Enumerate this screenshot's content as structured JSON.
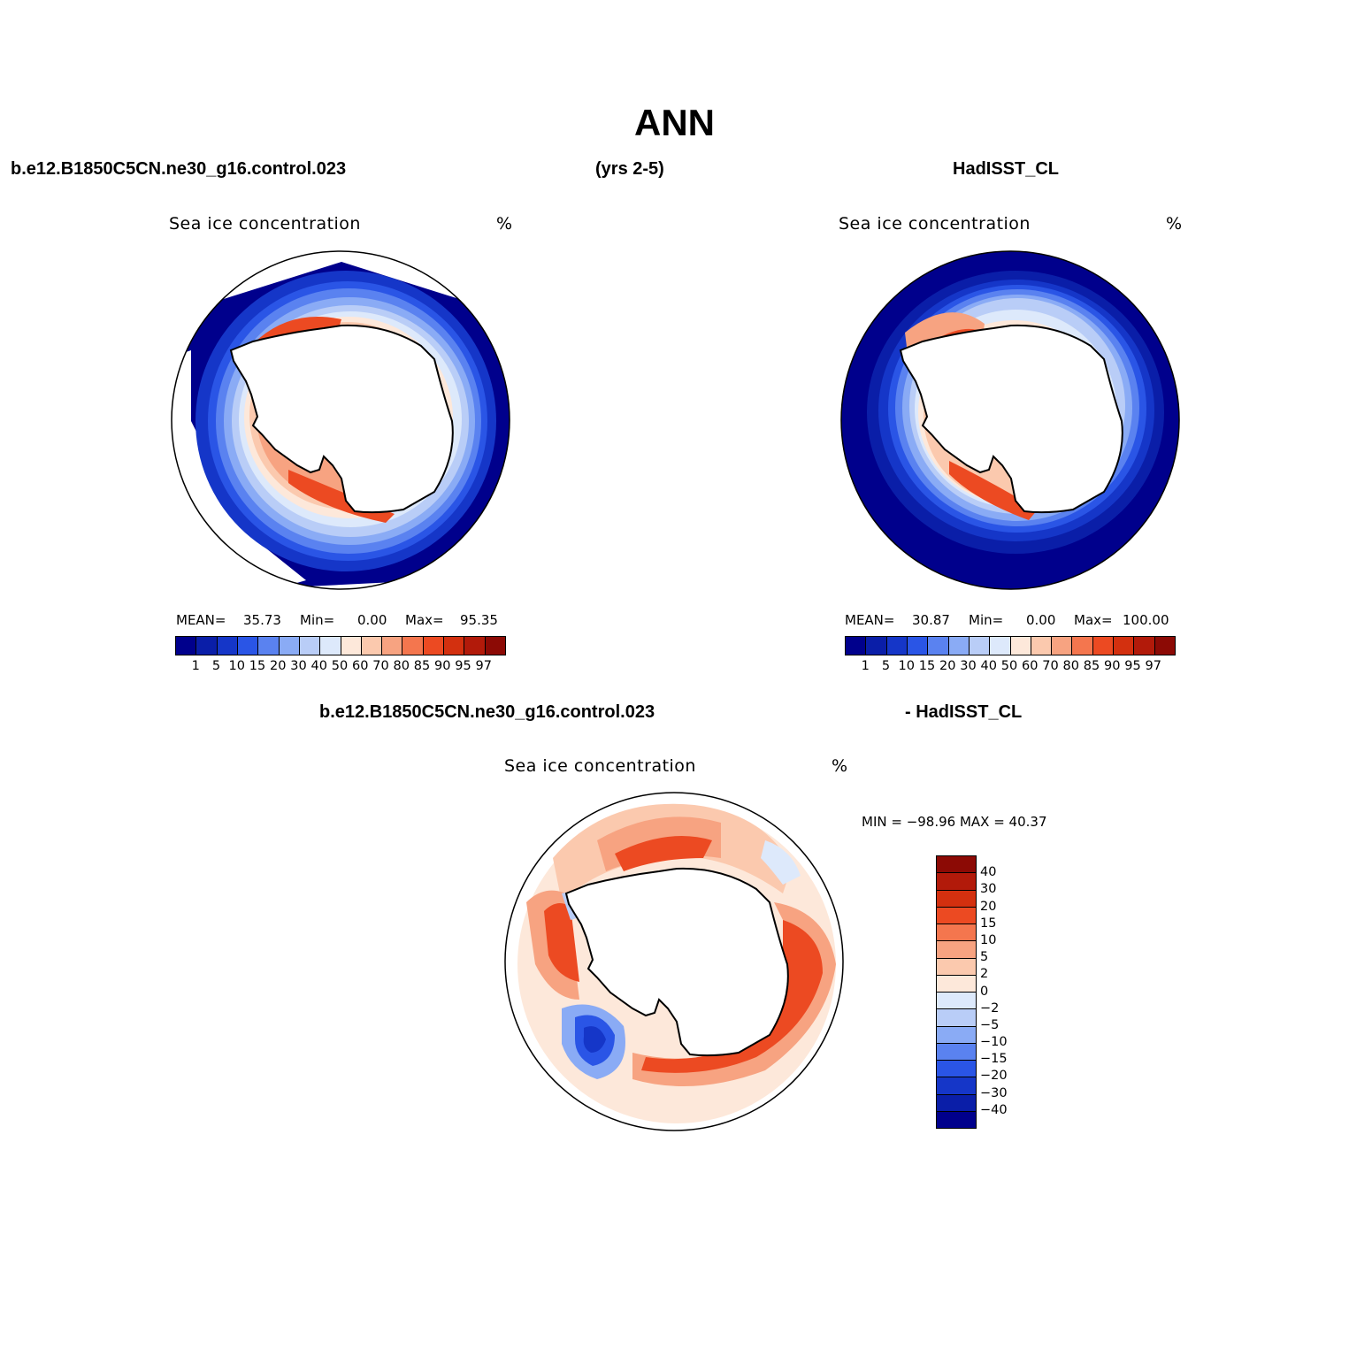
{
  "figure": {
    "title": "ANN",
    "header_left": "b.e12.B1850C5CN.ne30_g16.control.023",
    "header_center": "(yrs 2-5)",
    "header_right": "HadISST_CL",
    "diff_header_left": "b.e12.B1850C5CN.ne30_g16.control.023",
    "diff_header_right": "- HadISST_CL"
  },
  "panels": {
    "model": {
      "title": "Sea ice concentration",
      "units": "%",
      "mean_label": "MEAN=",
      "mean_value": "35.73",
      "min_label": "Min=",
      "min_value": "0.00",
      "max_label": "Max=",
      "max_value": "95.35",
      "level_labels": [
        "1",
        "5",
        "10",
        "15",
        "20",
        "30",
        "40",
        "50",
        "60",
        "70",
        "80",
        "85",
        "90",
        "95",
        "97"
      ]
    },
    "obs": {
      "title": "Sea ice concentration",
      "units": "%",
      "mean_label": "MEAN=",
      "mean_value": "30.87",
      "min_label": "Min=",
      "min_value": "0.00",
      "max_label": "Max=",
      "max_value": "100.00",
      "level_labels": [
        "1",
        "5",
        "10",
        "15",
        "20",
        "30",
        "40",
        "50",
        "60",
        "70",
        "80",
        "85",
        "90",
        "95",
        "97"
      ]
    },
    "diff": {
      "title": "Sea ice concentration",
      "units": "%",
      "minmax_text": "MIN = −98.96 MAX =  40.37",
      "level_labels": [
        "40",
        "30",
        "20",
        "15",
        "10",
        "5",
        "2",
        "0",
        "−2",
        "−5",
        "−10",
        "−15",
        "−20",
        "−30",
        "−40"
      ]
    }
  },
  "colors": {
    "conc_scale": [
      "#00008c",
      "#0a1ea8",
      "#1536c8",
      "#2a55e6",
      "#5a82f0",
      "#8aabf5",
      "#b9cdf7",
      "#dde9fb",
      "#fde8da",
      "#fbc9ae",
      "#f7a381",
      "#f4764e",
      "#ec4a22",
      "#d3300f",
      "#b21a0a",
      "#8c0a05"
    ],
    "diff_scale": [
      "#8c0a05",
      "#b21a0a",
      "#d3300f",
      "#ec4a22",
      "#f4764e",
      "#f7a381",
      "#fbc9ae",
      "#fde8da",
      "#dde9fb",
      "#b9cdf7",
      "#8aabf5",
      "#5a82f0",
      "#2a55e6",
      "#1536c8",
      "#0a1ea8",
      "#00008c"
    ]
  }
}
